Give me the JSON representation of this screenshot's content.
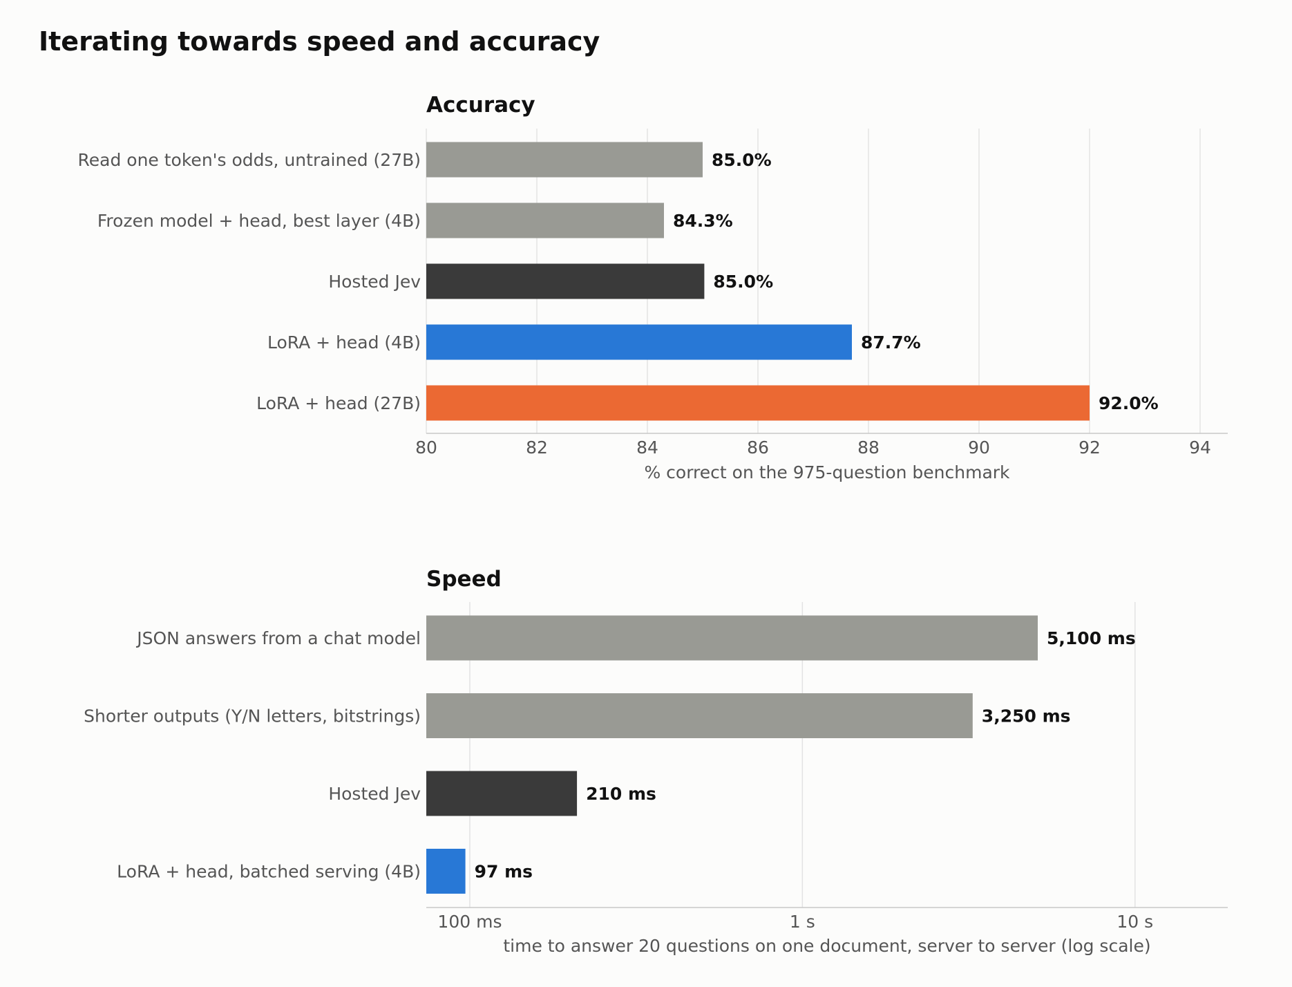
{
  "title": "Iterating towards speed and accuracy",
  "colors": {
    "gray": "#999a94",
    "dark": "#3a3a3a",
    "blue": "#2878d6",
    "orange": "#eb6933"
  },
  "chart_data": [
    {
      "type": "bar",
      "orientation": "horizontal",
      "title": "Accuracy",
      "xlabel": "% correct on the 975-question benchmark",
      "ylabel": "",
      "xlim": [
        80,
        94.5
      ],
      "xscale": "linear",
      "xticks": [
        80,
        82,
        84,
        86,
        88,
        90,
        92,
        94
      ],
      "xtick_labels": [
        "80",
        "82",
        "84",
        "86",
        "88",
        "90",
        "92",
        "94"
      ],
      "grid": "vertical",
      "categories": [
        "Read one token's odds, untrained (27B)",
        "Frozen model + head, best layer (4B)",
        "Hosted Jev",
        "LoRA + head (4B)",
        "LoRA + head (27B)"
      ],
      "values": [
        85.0,
        84.3,
        85.03,
        87.7,
        92.0
      ],
      "data_labels": [
        "85.0%",
        "84.3%",
        "85.0%",
        "87.7%",
        "92.0%"
      ],
      "bar_colors": [
        "#999a94",
        "#999a94",
        "#3a3a3a",
        "#2878d6",
        "#eb6933"
      ]
    },
    {
      "type": "bar",
      "orientation": "horizontal",
      "title": "Speed",
      "xlabel": "time to answer 20 questions on one document, server to server (log scale)",
      "ylabel": "",
      "xlim": [
        74,
        19000
      ],
      "xscale": "log",
      "xticks": [
        100,
        1000,
        10000
      ],
      "xtick_labels": [
        "100 ms",
        "1 s",
        "10 s"
      ],
      "grid": "vertical",
      "categories": [
        "JSON answers from a chat model",
        "Shorter outputs (Y/N letters, bitstrings)",
        "Hosted Jev",
        "LoRA + head, batched serving (4B)"
      ],
      "values": [
        5100,
        3250,
        210,
        97
      ],
      "data_labels": [
        "5,100 ms",
        "3,250 ms",
        "210 ms",
        "97 ms"
      ],
      "bar_colors": [
        "#999a94",
        "#999a94",
        "#3a3a3a",
        "#2878d6"
      ]
    }
  ]
}
